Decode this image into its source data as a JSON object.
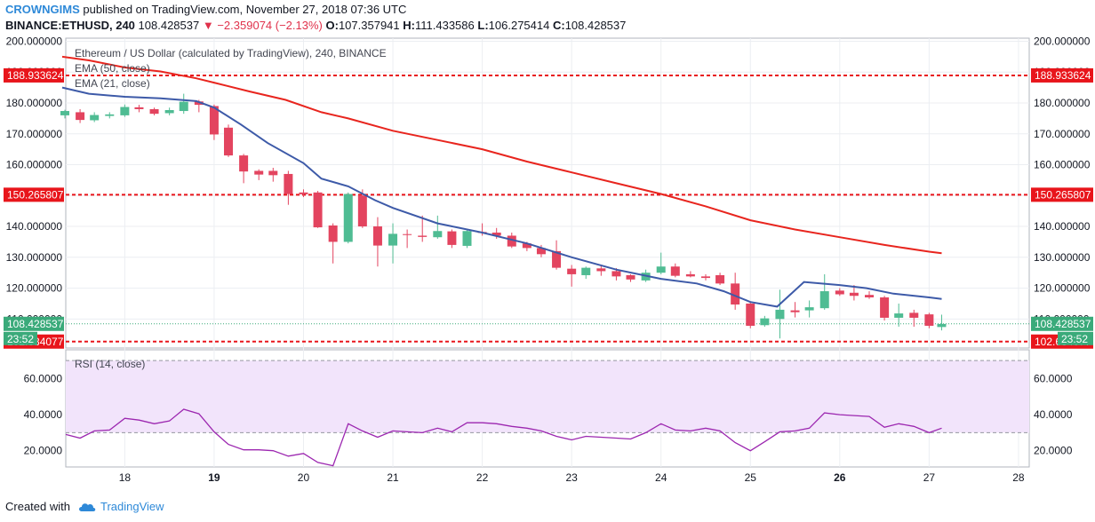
{
  "header": {
    "author": "CROWNGIMS",
    "published_text": "published on TradingView.com, November 27, 2018 07:36 UTC",
    "symbol": "BINANCE:ETHUSD, 240",
    "last": "108.428537",
    "change": "▼ −2.359074 (−2.13%)",
    "o_label": "O:",
    "o_value": "107.357941",
    "h_label": "H:",
    "h_value": "111.433586",
    "l_label": "L:",
    "l_value": "106.275414",
    "c_label": "C:",
    "c_value": "108.428537"
  },
  "footer": {
    "created_with": "Created with",
    "brand": "TradingView",
    "logo_icon": "tradingview-cloud-icon"
  },
  "colors": {
    "bull": "#4fbc93",
    "bear": "#e3445f",
    "ema50": "#e8251e",
    "ema21": "#3d5aa8",
    "level": "#e8151b",
    "rsi": "#9c27b0",
    "rsi_band": "#f2e4fb",
    "last_price": "#3aaa7a"
  },
  "chart_data": [
    {
      "type": "candlestick",
      "title": "Ethereum / US Dollar (calculated by TradingView), 240, BINANCE",
      "ylim": [
        100.6,
        201
      ],
      "y_ticks": [
        110,
        120,
        130,
        140,
        150,
        160,
        170,
        180,
        190,
        200
      ],
      "y_tick_labels": [
        "110.000000",
        "120.000000",
        "130.000000",
        "140.000000",
        "150.000000",
        "160.000000",
        "170.000000",
        "180.000000",
        "190.000000",
        "200.000000"
      ],
      "x_range": [
        17.34,
        28.12
      ],
      "x_ticks": [
        18,
        19,
        20,
        21,
        22,
        23,
        24,
        25,
        26,
        27,
        28
      ],
      "x_tick_labels": [
        "18",
        "19",
        "20",
        "21",
        "22",
        "23",
        "24",
        "25",
        "26",
        "27",
        "28"
      ],
      "x_tick_bold": [
        19,
        26
      ],
      "candles": [
        [
          17.33,
          176,
          177.4,
          175,
          177.8
        ],
        [
          17.5,
          177,
          174.5,
          173.5,
          178
        ],
        [
          17.66,
          174.4,
          176.1,
          173.8,
          177
        ],
        [
          17.83,
          175.8,
          176.3,
          175,
          177
        ],
        [
          18.0,
          176,
          178.7,
          175.5,
          179.5
        ],
        [
          18.16,
          178.6,
          178,
          177,
          179.4
        ],
        [
          18.33,
          178,
          176.5,
          176,
          178.5
        ],
        [
          18.5,
          176.7,
          177.7,
          176,
          178.5
        ],
        [
          18.66,
          177.4,
          180.4,
          176.5,
          183
        ],
        [
          18.83,
          180.5,
          179.4,
          177,
          181
        ],
        [
          19.0,
          179,
          169.8,
          168,
          179.5
        ],
        [
          19.16,
          172,
          163,
          162.5,
          173
        ],
        [
          19.33,
          163,
          157.8,
          154,
          163.5
        ],
        [
          19.5,
          158,
          156.8,
          155,
          158.5
        ],
        [
          19.66,
          158,
          156.6,
          154.5,
          159
        ],
        [
          19.83,
          157,
          150.5,
          147,
          158
        ],
        [
          20.0,
          151,
          150.4,
          149.5,
          152
        ],
        [
          20.16,
          151,
          139.7,
          139.5,
          151.5
        ],
        [
          20.33,
          140.3,
          135,
          128,
          141
        ],
        [
          20.5,
          135,
          150.5,
          134.5,
          151
        ],
        [
          20.66,
          150,
          140,
          139.5,
          152
        ],
        [
          20.83,
          140,
          133.8,
          127,
          143
        ],
        [
          21.0,
          133.8,
          137.6,
          128,
          141
        ],
        [
          21.16,
          137.5,
          137.4,
          133,
          139
        ],
        [
          21.33,
          137,
          136.6,
          135,
          143.5
        ],
        [
          21.5,
          136.5,
          138.5,
          136,
          143.5
        ],
        [
          21.66,
          138.4,
          134,
          133,
          139
        ],
        [
          21.83,
          133.7,
          138.5,
          133,
          139
        ],
        [
          22.0,
          138.2,
          137.9,
          137,
          141
        ],
        [
          22.16,
          138,
          137,
          136,
          139.5
        ],
        [
          22.33,
          137,
          133.5,
          133,
          138
        ],
        [
          22.5,
          134.5,
          133,
          132,
          135
        ],
        [
          22.66,
          133,
          131,
          130,
          134
        ],
        [
          22.83,
          132,
          126.6,
          126,
          135.5
        ],
        [
          23.0,
          126.3,
          124.5,
          120.5,
          127.5
        ],
        [
          23.16,
          124.2,
          126.6,
          123,
          127
        ],
        [
          23.33,
          126.4,
          125.5,
          124,
          127.5
        ],
        [
          23.5,
          125.5,
          123.8,
          122.5,
          126.5
        ],
        [
          23.66,
          124.2,
          122.8,
          122,
          124.5
        ],
        [
          23.83,
          122.5,
          125,
          122,
          126
        ],
        [
          24.0,
          125,
          127,
          124.5,
          131.5
        ],
        [
          24.16,
          127,
          124,
          123.5,
          128
        ],
        [
          24.33,
          124.5,
          123.8,
          123.5,
          125.5
        ],
        [
          24.5,
          123.8,
          123.3,
          122.5,
          124.5
        ],
        [
          24.66,
          124.2,
          121.5,
          121,
          125
        ],
        [
          24.83,
          121.5,
          114.7,
          113,
          125
        ],
        [
          25.0,
          115,
          107.8,
          107,
          115.3
        ],
        [
          25.16,
          108,
          110.2,
          107.5,
          111
        ],
        [
          25.33,
          110,
          113,
          103.7,
          119.5
        ],
        [
          25.5,
          112.8,
          112.2,
          110.5,
          115.5
        ],
        [
          25.66,
          112.8,
          113.8,
          110.5,
          116
        ],
        [
          25.83,
          113.5,
          119,
          113,
          124.5
        ],
        [
          26.0,
          119.2,
          118,
          117.5,
          120
        ],
        [
          26.16,
          118.5,
          117.5,
          116,
          121
        ],
        [
          26.33,
          117.8,
          117,
          116.5,
          119
        ],
        [
          26.5,
          117,
          110.4,
          109.5,
          117.5
        ],
        [
          26.66,
          110.4,
          111.8,
          107.5,
          115
        ],
        [
          26.83,
          112,
          110.4,
          107.5,
          113
        ],
        [
          27.0,
          111.5,
          107.8,
          107,
          112
        ],
        [
          27.14,
          107.4,
          108.4,
          106.3,
          111.4
        ]
      ],
      "series": [
        {
          "name": "EMA (50, close)",
          "x": [
            17.3,
            17.6,
            18.0,
            18.4,
            18.8,
            19.0,
            19.4,
            19.8,
            20.2,
            20.5,
            21.0,
            21.5,
            22.0,
            22.5,
            23.0,
            23.5,
            24.0,
            24.5,
            25.0,
            25.5,
            26.0,
            26.5,
            27.0,
            27.14
          ],
          "values": [
            195,
            193.8,
            191.5,
            190.2,
            188,
            186.6,
            183.7,
            181,
            177,
            175,
            171,
            168,
            165,
            161,
            157.5,
            154,
            150.5,
            146.5,
            142,
            139,
            136.5,
            134,
            131.8,
            131.3
          ]
        },
        {
          "name": "EMA (21, close)",
          "x": [
            17.3,
            17.6,
            18.0,
            18.4,
            18.8,
            19.0,
            19.3,
            19.6,
            20.0,
            20.2,
            20.5,
            20.8,
            21.0,
            21.5,
            22.0,
            22.5,
            23.0,
            23.5,
            24.0,
            24.4,
            24.7,
            25.0,
            25.3,
            25.6,
            26.0,
            26.3,
            26.6,
            27.0,
            27.14
          ],
          "values": [
            185,
            183,
            182,
            181.5,
            180.6,
            178.5,
            173,
            167,
            160.5,
            155.5,
            153,
            148.5,
            146,
            141,
            138,
            134.5,
            130,
            126,
            123,
            121.5,
            119,
            115.5,
            114,
            122,
            121,
            120,
            118.2,
            117,
            116.5
          ]
        }
      ],
      "levels": [
        188.933624,
        150.265807,
        102.684077
      ],
      "level_labels": [
        "188.933624",
        "150.265807",
        "102.684077"
      ],
      "legend": [
        "Ethereum / US Dollar (calculated by TradingView), 240, BINANCE",
        "EMA (50, close)",
        "EMA (21, close)"
      ],
      "last_price": 108.428537,
      "last_price_label": "108.428537",
      "countdown_label": "23:52"
    },
    {
      "type": "line",
      "title": "RSI (14, close)",
      "ylim": [
        11,
        76
      ],
      "y_ticks": [
        20,
        40,
        60
      ],
      "y_tick_labels": [
        "20.0000",
        "40.0000",
        "60.0000"
      ],
      "band": [
        30,
        70
      ],
      "x": [
        17.34,
        17.5,
        17.66,
        17.83,
        18.0,
        18.16,
        18.33,
        18.5,
        18.66,
        18.83,
        19.0,
        19.16,
        19.33,
        19.5,
        19.66,
        19.83,
        20.0,
        20.16,
        20.33,
        20.5,
        20.66,
        20.83,
        21.0,
        21.16,
        21.33,
        21.5,
        21.66,
        21.83,
        22.0,
        22.16,
        22.33,
        22.5,
        22.66,
        22.83,
        23.0,
        23.16,
        23.33,
        23.5,
        23.66,
        23.83,
        24.0,
        24.16,
        24.33,
        24.5,
        24.66,
        24.83,
        25.0,
        25.16,
        25.33,
        25.5,
        25.66,
        25.83,
        26.0,
        26.16,
        26.33,
        26.5,
        26.66,
        26.83,
        27.0,
        27.14
      ],
      "values": [
        29,
        27,
        31,
        31.5,
        38,
        37,
        35,
        36.5,
        43,
        40.5,
        30.5,
        23.5,
        20.5,
        20.5,
        20,
        17,
        18.5,
        13.5,
        11.7,
        35,
        31,
        27.5,
        31,
        30.5,
        30,
        32.5,
        30.5,
        35.5,
        35.5,
        35,
        33.5,
        32.5,
        31,
        28,
        26,
        28,
        27.5,
        27,
        26.5,
        30,
        35,
        31.5,
        31,
        32.5,
        31,
        24.5,
        20,
        25,
        30.5,
        31,
        32.5,
        41,
        40,
        39.5,
        39,
        33,
        35,
        33.5,
        30,
        32.5
      ],
      "legend": [
        "RSI (14, close)"
      ]
    }
  ]
}
